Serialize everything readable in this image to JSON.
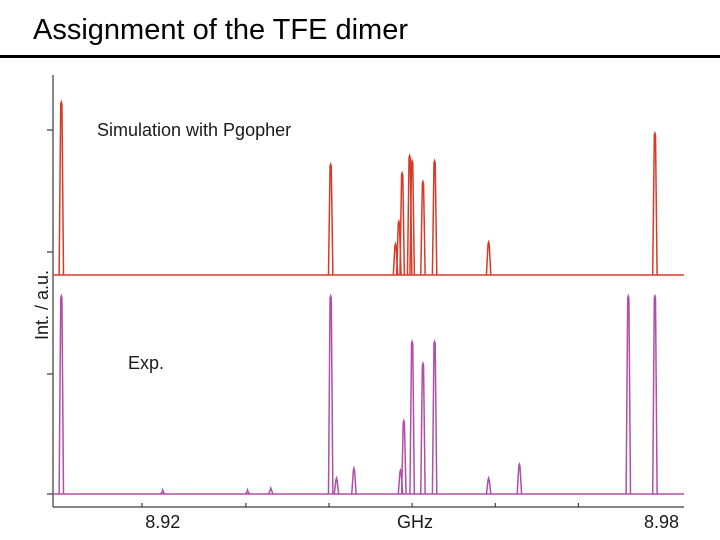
{
  "slide": {
    "title": "Assignment of the TFE dimer"
  },
  "chart_data": {
    "type": "line",
    "title": "",
    "xlabel": "GHz",
    "ylabel": "Int. / a.u.",
    "x_ticks": [
      8.92,
      8.98
    ],
    "xlim": [
      8.9068,
      8.9827
    ],
    "grid": false,
    "panels": [
      {
        "name": "Simulation with Pgopher",
        "color": "#d83a28",
        "lines": [
          {
            "x": 8.9078,
            "y": 1.0
          },
          {
            "x": 8.9402,
            "y": 0.64
          },
          {
            "x": 8.948,
            "y": 0.18
          },
          {
            "x": 8.9484,
            "y": 0.31
          },
          {
            "x": 8.9488,
            "y": 0.59
          },
          {
            "x": 8.9497,
            "y": 0.69
          },
          {
            "x": 8.95,
            "y": 0.66
          },
          {
            "x": 8.9513,
            "y": 0.54
          },
          {
            "x": 8.9527,
            "y": 0.66
          },
          {
            "x": 8.9592,
            "y": 0.19
          },
          {
            "x": 8.9792,
            "y": 0.82
          }
        ]
      },
      {
        "name": "Exp.",
        "color": "#b04ea8",
        "lines": [
          {
            "x": 8.9078,
            "y": 1.0
          },
          {
            "x": 8.9402,
            "y": 1.0
          },
          {
            "x": 8.9409,
            "y": 0.08
          },
          {
            "x": 8.943,
            "y": 0.13
          },
          {
            "x": 8.9486,
            "y": 0.12
          },
          {
            "x": 8.949,
            "y": 0.37
          },
          {
            "x": 8.95,
            "y": 0.77
          },
          {
            "x": 8.9513,
            "y": 0.66
          },
          {
            "x": 8.9527,
            "y": 0.77
          },
          {
            "x": 8.9592,
            "y": 0.08
          },
          {
            "x": 8.9629,
            "y": 0.15
          },
          {
            "x": 8.976,
            "y": 1.0
          },
          {
            "x": 8.9792,
            "y": 1.0
          },
          {
            "x": 8.92,
            "y": 0.02
          },
          {
            "x": 8.9302,
            "y": 0.02
          },
          {
            "x": 8.933,
            "y": 0.03
          }
        ]
      }
    ]
  }
}
